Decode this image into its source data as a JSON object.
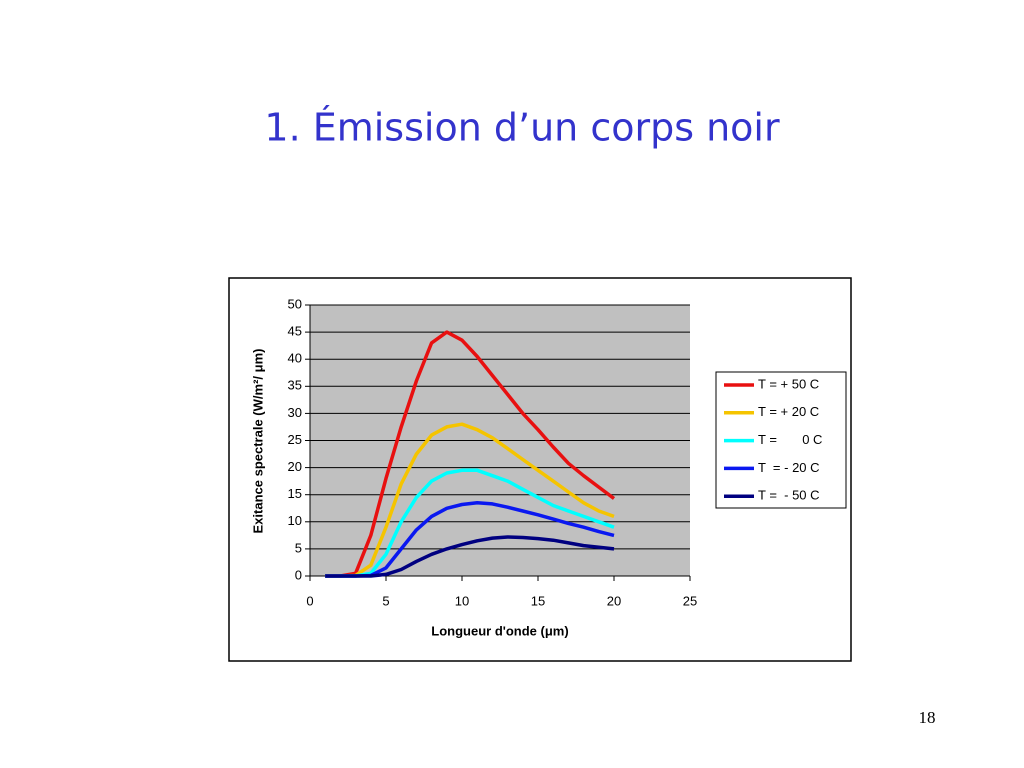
{
  "slide_title": "1. Émission d’un corps noir",
  "page_number": "18",
  "chart_data": {
    "type": "line",
    "x_label": "Longueur d'onde (μm)",
    "y_label": "Exitance spectrale (W/m²/  μm)",
    "x": [
      1,
      2,
      3,
      4,
      5,
      6,
      7,
      8,
      9,
      10,
      11,
      12,
      13,
      14,
      15,
      16,
      17,
      18,
      19,
      20
    ],
    "series": [
      {
        "name": "T = + 50 C",
        "color": "#e81010",
        "values": [
          0,
          0,
          0.5,
          7.5,
          18,
          27.5,
          36,
          43,
          45,
          43.5,
          40.5,
          37,
          33.5,
          30,
          27,
          23.8,
          20.8,
          18.5,
          16.4,
          14.3
        ]
      },
      {
        "name": "T = + 20 C",
        "color": "#f5c400",
        "values": [
          0,
          0,
          0.1,
          2,
          9,
          17,
          22.5,
          26,
          27.5,
          28,
          27,
          25.5,
          23.5,
          21.5,
          19.5,
          17.5,
          15.5,
          13.5,
          12,
          11
        ]
      },
      {
        "name": "T =       0 C",
        "color": "#00ffff",
        "values": [
          0,
          0,
          0,
          0.5,
          4,
          10,
          14.5,
          17.5,
          19,
          19.5,
          19.5,
          18.5,
          17.5,
          16,
          14.5,
          13,
          12,
          11,
          10,
          9
        ]
      },
      {
        "name": "T  = - 20 C",
        "color": "#0a18f0",
        "values": [
          0,
          0,
          0,
          0.1,
          1.5,
          5,
          8.5,
          11,
          12.5,
          13.2,
          13.5,
          13.3,
          12.7,
          12,
          11.3,
          10.5,
          9.7,
          9,
          8.2,
          7.5
        ]
      },
      {
        "name": "T =  - 50 C",
        "color": "#000080",
        "values": [
          0,
          0,
          0,
          0,
          0.3,
          1.2,
          2.7,
          4,
          5,
          5.8,
          6.5,
          7,
          7.2,
          7.1,
          6.9,
          6.6,
          6.1,
          5.6,
          5.3,
          5
        ]
      }
    ],
    "xlim": [
      0,
      25
    ],
    "xticks": [
      0,
      5,
      10,
      15,
      20,
      25
    ],
    "ylim": [
      0,
      50
    ],
    "yticks": [
      0,
      5,
      10,
      15,
      20,
      25,
      30,
      35,
      40,
      45,
      50
    ],
    "grid": true,
    "legend": "right"
  }
}
